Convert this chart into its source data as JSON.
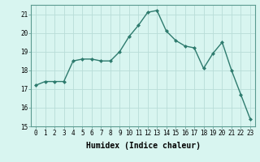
{
  "x": [
    0,
    1,
    2,
    3,
    4,
    5,
    6,
    7,
    8,
    9,
    10,
    11,
    12,
    13,
    14,
    15,
    16,
    17,
    18,
    19,
    20,
    21,
    22,
    23
  ],
  "y": [
    17.2,
    17.4,
    17.4,
    17.4,
    18.5,
    18.6,
    18.6,
    18.5,
    18.5,
    19.0,
    19.8,
    20.4,
    21.1,
    21.2,
    20.1,
    19.6,
    19.3,
    19.2,
    18.1,
    18.9,
    19.5,
    18.0,
    16.7,
    15.4
  ],
  "line_color": "#2e7b6e",
  "marker": "D",
  "marker_size": 2.0,
  "bg_color": "#d8f5f0",
  "grid_color": "#b8ddd8",
  "xlabel": "Humidex (Indice chaleur)",
  "ylim": [
    15,
    21.5
  ],
  "xlim": [
    -0.5,
    23.5
  ],
  "yticks": [
    15,
    16,
    17,
    18,
    19,
    20,
    21
  ],
  "xticks": [
    0,
    1,
    2,
    3,
    4,
    5,
    6,
    7,
    8,
    9,
    10,
    11,
    12,
    13,
    14,
    15,
    16,
    17,
    18,
    19,
    20,
    21,
    22,
    23
  ],
  "xtick_labels": [
    "0",
    "1",
    "2",
    "3",
    "4",
    "5",
    "6",
    "7",
    "8",
    "9",
    "10",
    "11",
    "12",
    "13",
    "14",
    "15",
    "16",
    "17",
    "18",
    "19",
    "20",
    "21",
    "22",
    "23"
  ],
  "tick_fontsize": 5.5,
  "xlabel_fontsize": 7.0,
  "line_width": 1.0
}
